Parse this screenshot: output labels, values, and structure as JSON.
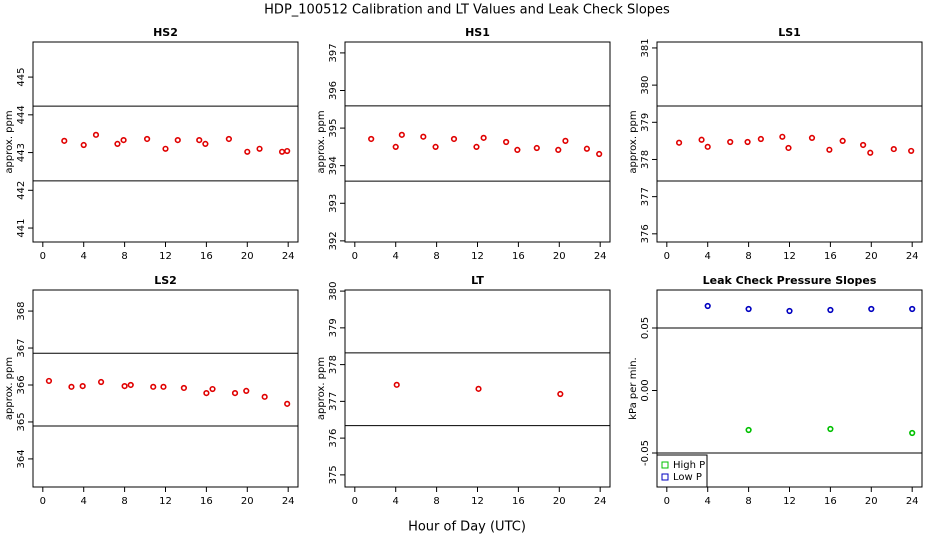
{
  "title": "HDP_100512  Calibration and LT Values and Leak Check Slopes",
  "xlabel": "Hour of Day (UTC)",
  "chart_data": [
    {
      "type": "scatter",
      "title": "HS2",
      "ylabel": "approx. ppm",
      "color": "#e00000",
      "x": [
        2.1,
        4.0,
        5.2,
        7.3,
        7.9,
        10.2,
        12.0,
        13.2,
        15.3,
        15.9,
        18.2,
        20.0,
        21.2,
        23.4,
        23.9
      ],
      "values": [
        443.31,
        443.2,
        443.47,
        443.23,
        443.33,
        443.36,
        443.1,
        443.33,
        443.33,
        443.23,
        443.36,
        443.02,
        443.1,
        443.02,
        443.04
      ],
      "hlines": [
        444.23,
        442.25
      ],
      "xlim": [
        -0.96,
        24.96
      ],
      "xticks": [
        0,
        4,
        8,
        12,
        16,
        20,
        24
      ],
      "ylim": [
        440.63,
        445.93
      ],
      "yticks": [
        441,
        442,
        443,
        444,
        445
      ]
    },
    {
      "type": "scatter",
      "title": "HS1",
      "ylabel": "approx. ppm",
      "color": "#e00000",
      "x": [
        1.6,
        4.0,
        4.6,
        6.7,
        7.9,
        9.7,
        11.9,
        12.6,
        14.8,
        15.9,
        17.8,
        19.9,
        20.6,
        22.7,
        23.9
      ],
      "values": [
        394.71,
        394.5,
        394.82,
        394.77,
        394.5,
        394.71,
        394.5,
        394.74,
        394.63,
        394.42,
        394.47,
        394.42,
        394.66,
        394.45,
        394.31
      ],
      "hlines": [
        395.59,
        393.59
      ],
      "xlim": [
        -0.96,
        24.96
      ],
      "xticks": [
        0,
        4,
        8,
        12,
        16,
        20,
        24
      ],
      "ylim": [
        391.97,
        397.29
      ],
      "yticks": [
        392,
        393,
        394,
        395,
        396,
        397
      ]
    },
    {
      "type": "scatter",
      "title": "LS1",
      "ylabel": "approx. ppm",
      "color": "#e00000",
      "x": [
        1.2,
        3.4,
        4.0,
        6.2,
        7.9,
        9.2,
        11.3,
        11.9,
        14.2,
        15.9,
        17.2,
        19.2,
        19.9,
        22.2,
        23.9
      ],
      "values": [
        378.45,
        378.53,
        378.34,
        378.47,
        378.47,
        378.55,
        378.61,
        378.31,
        378.58,
        378.26,
        378.5,
        378.39,
        378.18,
        378.28,
        378.23
      ],
      "hlines": [
        379.44,
        377.42
      ],
      "xlim": [
        -0.96,
        24.96
      ],
      "xticks": [
        0,
        4,
        8,
        12,
        16,
        20,
        24
      ],
      "ylim": [
        375.78,
        381.16
      ],
      "yticks": [
        376,
        377,
        378,
        379,
        380,
        381
      ]
    },
    {
      "type": "scatter",
      "title": "LS2",
      "ylabel": "approx. ppm",
      "color": "#e00000",
      "x": [
        0.6,
        2.8,
        3.9,
        5.7,
        8.0,
        8.6,
        10.8,
        11.8,
        13.8,
        16.0,
        16.6,
        18.8,
        19.9,
        21.7,
        23.9
      ],
      "values": [
        366.11,
        365.95,
        365.97,
        366.08,
        365.97,
        366.0,
        365.95,
        365.95,
        365.92,
        365.78,
        365.89,
        365.78,
        365.84,
        365.68,
        365.49
      ],
      "hlines": [
        366.86,
        364.89
      ],
      "xlim": [
        -0.96,
        24.96
      ],
      "xticks": [
        0,
        4,
        8,
        12,
        16,
        20,
        24
      ],
      "ylim": [
        363.24,
        368.57
      ],
      "yticks": [
        364,
        365,
        366,
        367,
        368
      ]
    },
    {
      "type": "scatter",
      "title": "LT",
      "ylabel": "approx. ppm",
      "color": "#e00000",
      "x": [
        4.1,
        12.1,
        20.1
      ],
      "values": [
        377.45,
        377.34,
        377.2
      ],
      "hlines": [
        378.32,
        376.34
      ],
      "xlim": [
        -0.96,
        24.96
      ],
      "xticks": [
        0,
        4,
        8,
        12,
        16,
        20,
        24
      ],
      "ylim": [
        374.67,
        380.03
      ],
      "yticks": [
        375,
        376,
        377,
        378,
        379,
        380
      ]
    },
    {
      "type": "scatter",
      "title": "Leak Check Pressure Slopes",
      "ylabel": "kPa per min.",
      "series": [
        {
          "name": "High P",
          "color": "#00c000",
          "x": [
            8,
            16,
            24
          ],
          "values": [
            -0.0316,
            -0.0308,
            -0.034
          ]
        },
        {
          "name": "Low P",
          "color": "#0000c0",
          "x": [
            4,
            8,
            12,
            16,
            20,
            24
          ],
          "values": [
            0.0676,
            0.0652,
            0.0636,
            0.0644,
            0.0652,
            0.0652
          ]
        }
      ],
      "legend": "bottomleft",
      "hlines": [
        0.05,
        -0.05
      ],
      "xlim": [
        -0.96,
        24.96
      ],
      "xticks": [
        0,
        4,
        8,
        12,
        16,
        20,
        24
      ],
      "ylim": [
        -0.0772,
        0.0804
      ],
      "yticks": [
        -0.05,
        {
          "value": 0,
          "label": "0.00"
        },
        0.05
      ]
    }
  ]
}
